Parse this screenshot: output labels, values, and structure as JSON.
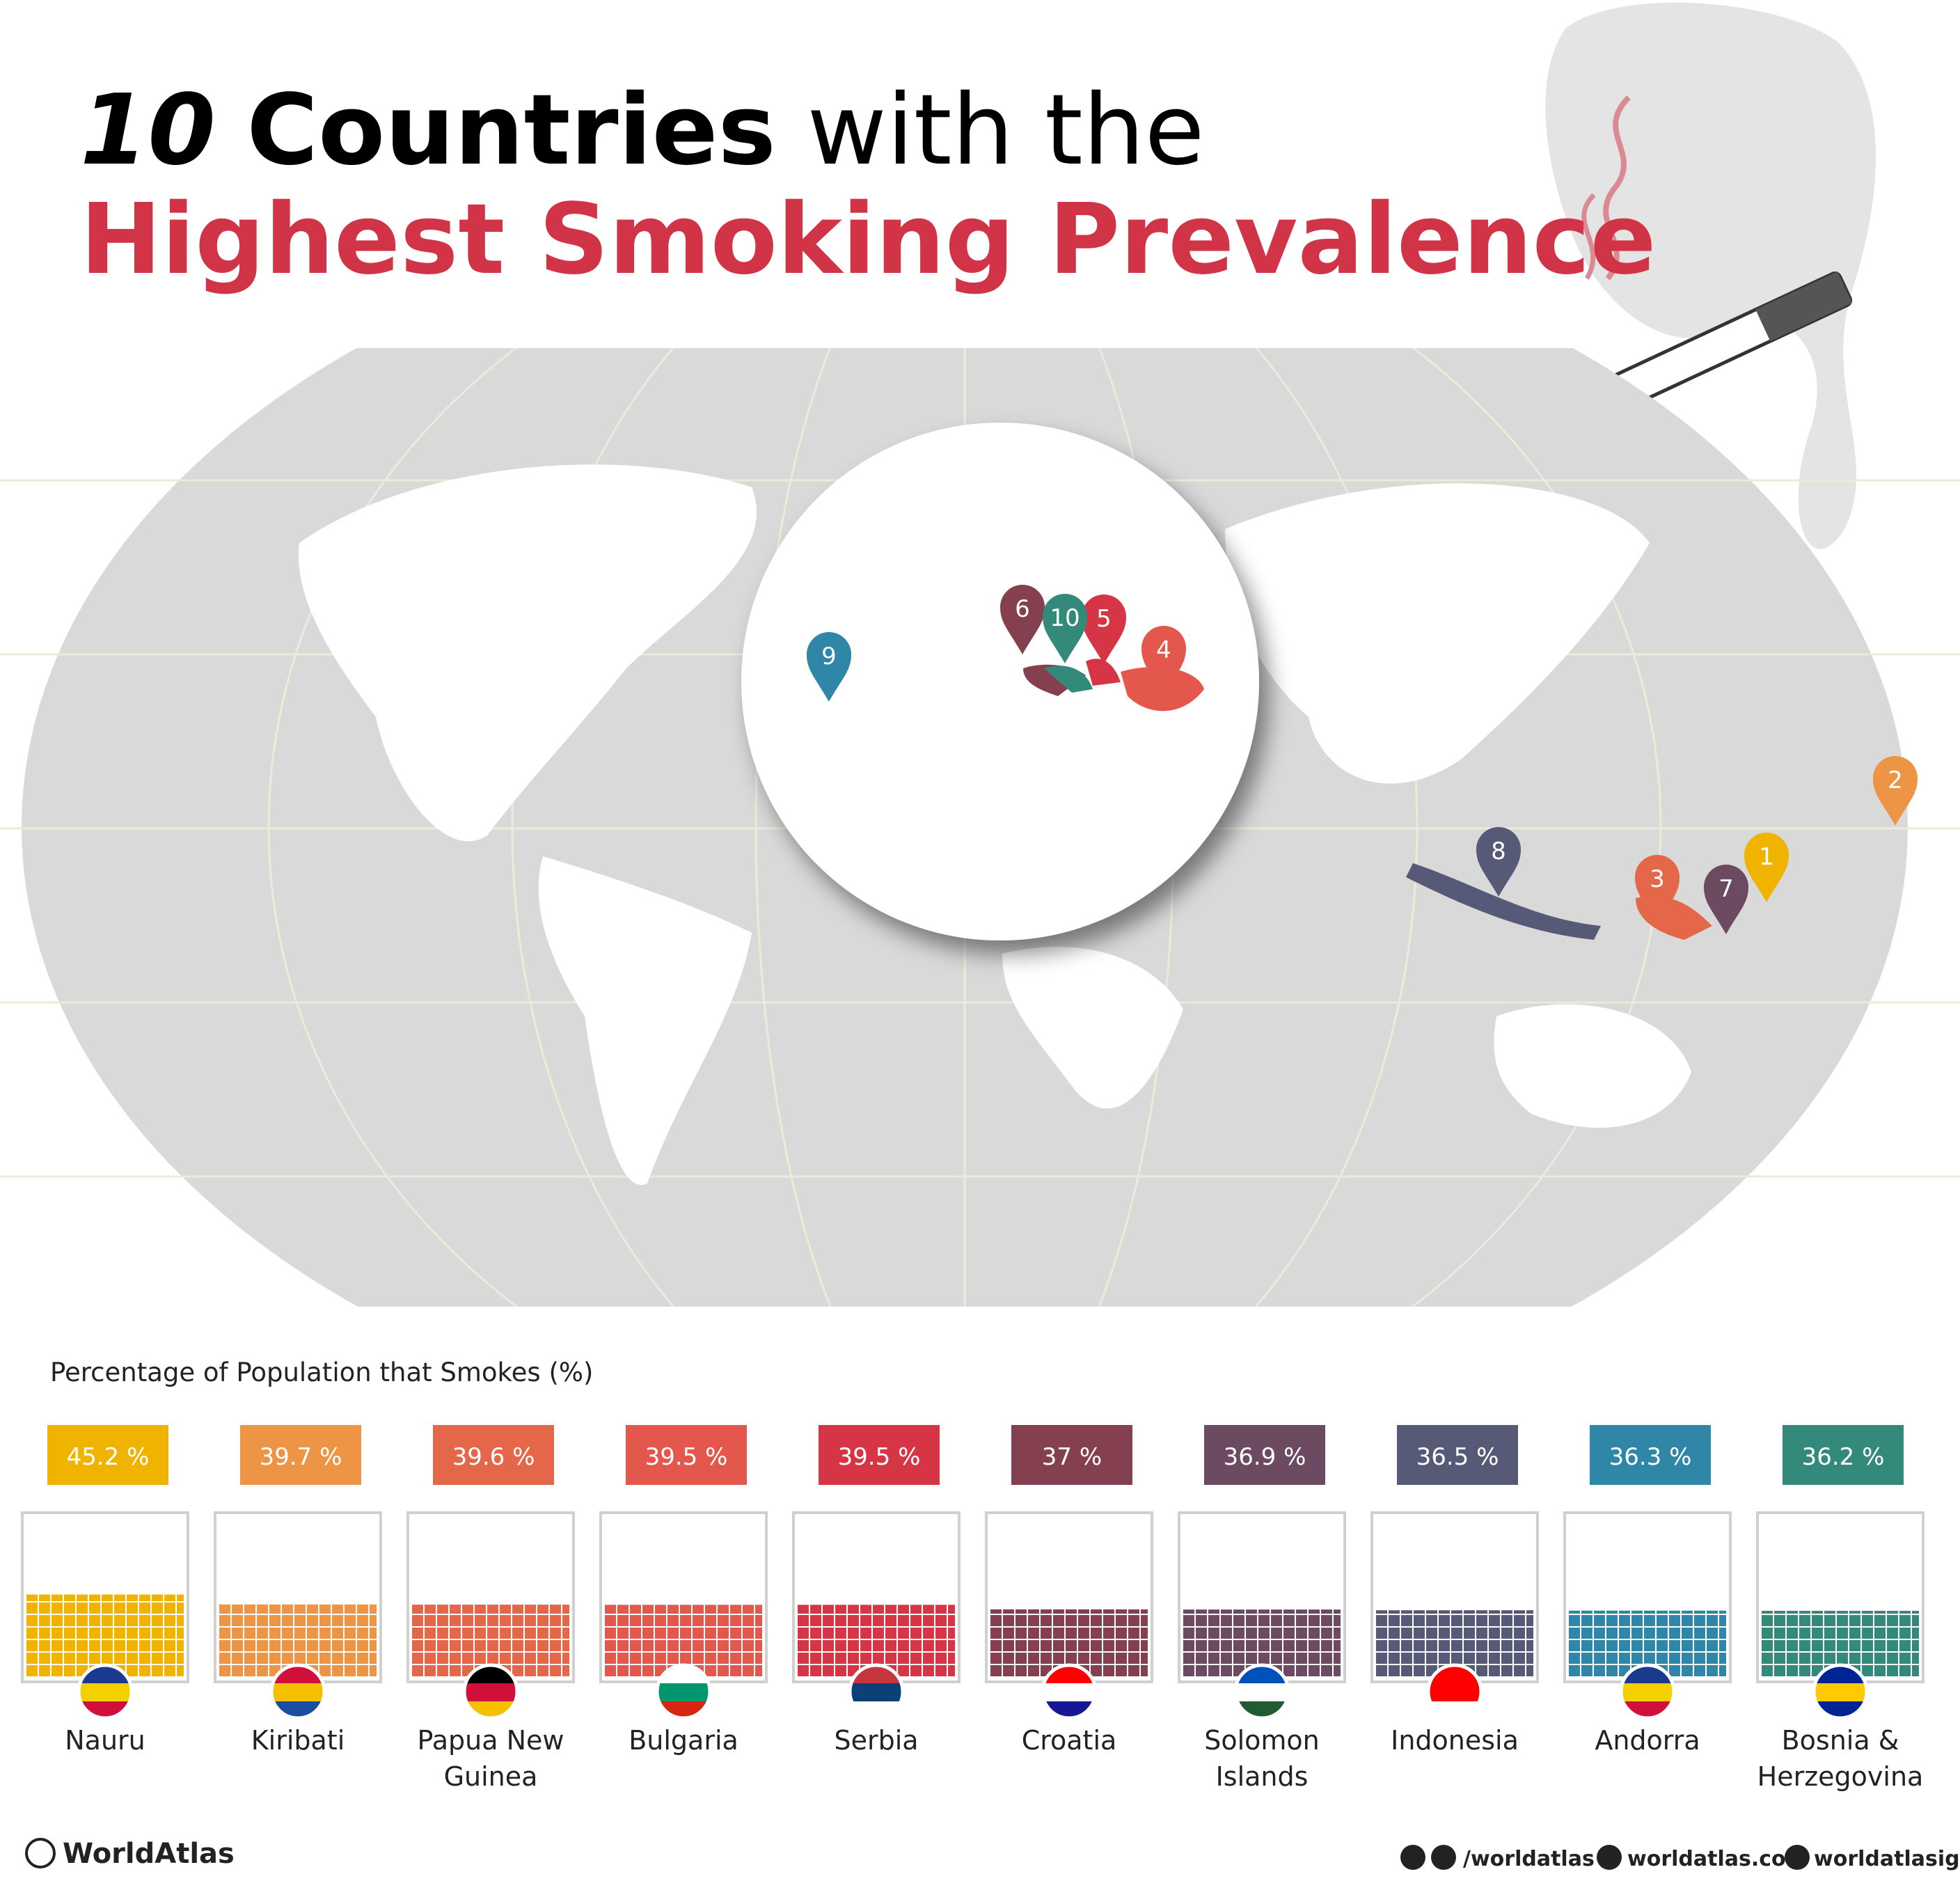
{
  "header": {
    "title_number": "10",
    "title_bold": "Countries",
    "title_rest": "with the",
    "subtitle": "Highest Smoking Prevalence"
  },
  "map": {
    "pins": [
      1,
      2,
      3,
      4,
      5,
      6,
      7,
      8,
      9,
      10
    ]
  },
  "chart_data": {
    "type": "waffle",
    "title": "Percentage of Population that Smokes (%)",
    "categories": [
      "Nauru",
      "Kiribati",
      "Papua New Guinea",
      "Bulgaria",
      "Serbia",
      "Croatia",
      "Solomon Islands",
      "Indonesia",
      "Andorra",
      "Bosnia & Herzegovina"
    ],
    "values": [
      45.2,
      39.7,
      39.6,
      39.5,
      39.5,
      37,
      36.9,
      36.5,
      36.3,
      36.2
    ],
    "value_labels": [
      "45.2 %",
      "39.7 %",
      "39.6 %",
      "39.5 %",
      "39.5 %",
      "37 %",
      "36.9 %",
      "36.5 %",
      "36.3 %",
      "36.2 %"
    ],
    "colors": [
      "#f0b400",
      "#ee9445",
      "#e4674a",
      "#e4574c",
      "#d53545",
      "#85404f",
      "#6b4a62",
      "#565a77",
      "#2f86a6",
      "#33897a"
    ]
  },
  "footer": {
    "brand": "WorldAtlas",
    "social": "/worldatlas",
    "site": "worldatlas.com",
    "instagram": "worldatlasig"
  }
}
